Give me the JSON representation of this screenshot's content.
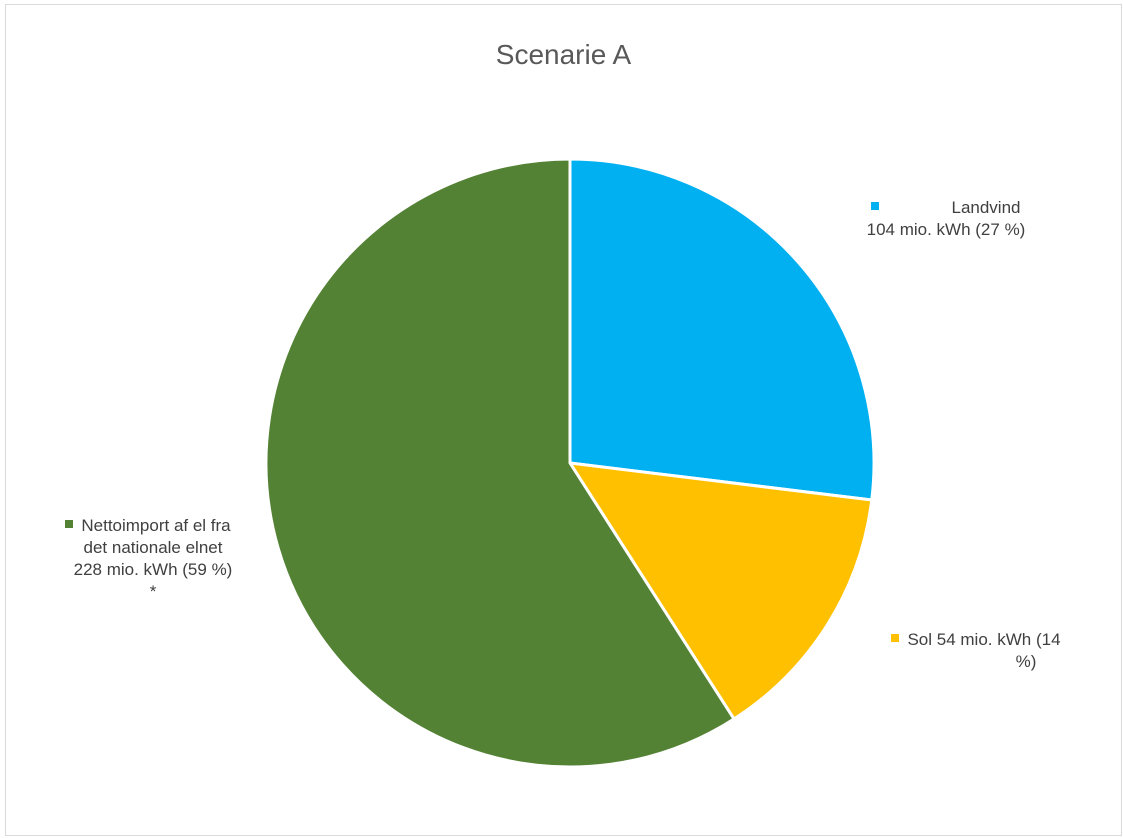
{
  "chart_data": {
    "type": "pie",
    "title": "Scenarie A",
    "slices": [
      {
        "value": 104,
        "percent": 27,
        "color": "#00B0F0",
        "label_lines": [
          "Landvind",
          "104 mio. kWh (27 %)"
        ]
      },
      {
        "value": 54,
        "percent": 14,
        "color": "#FFC000",
        "label_lines": [
          "Sol 54 mio. kWh (14",
          "%)"
        ]
      },
      {
        "value": 228,
        "percent": 59,
        "color": "#548235",
        "label_lines": [
          "Nettoimport af el fra",
          "det nationale elnet",
          "228 mio. kWh (59 %)",
          "*"
        ]
      }
    ],
    "start_angle_deg": 0,
    "direction": "clockwise",
    "legend": "none",
    "data_label_position": "outside"
  }
}
